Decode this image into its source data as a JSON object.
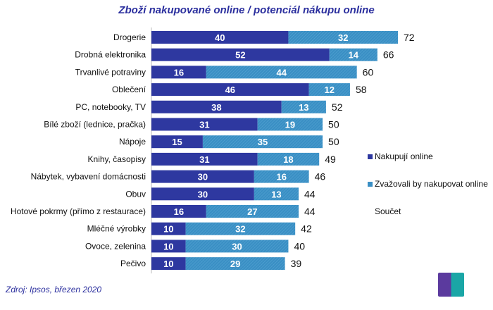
{
  "chart_data": {
    "type": "bar",
    "orientation": "horizontal",
    "stacked": true,
    "title": "Zboží nakupované online / potenciál nákupu online",
    "categories": [
      "Drogerie",
      "Drobná elektronika",
      "Trvanlivé potraviny",
      "Oblečení",
      "PC, notebooky, TV",
      "Bílé zboží (lednice, pračka)",
      "Nápoje",
      "Knihy, časopisy",
      "Nábytek, vybavení domácnosti",
      "Obuv",
      "Hotové pokrmy (přímo z restaurace)",
      "Mléčné výrobky",
      "Ovoce, zelenina",
      "Pečivo"
    ],
    "series": [
      {
        "name": "Nakupují online",
        "color": "#2e38a0",
        "values": [
          40,
          52,
          16,
          46,
          38,
          31,
          15,
          31,
          30,
          30,
          16,
          10,
          10,
          10
        ]
      },
      {
        "name": "Zvažovali by nakupovat online",
        "color": "#3a8fc4",
        "values": [
          32,
          14,
          44,
          12,
          13,
          19,
          35,
          18,
          16,
          13,
          27,
          32,
          30,
          29
        ]
      }
    ],
    "totals_label": "Součet",
    "totals": [
      72,
      66,
      60,
      58,
      52,
      50,
      50,
      49,
      46,
      44,
      44,
      42,
      40,
      39
    ],
    "xlim": [
      0,
      72
    ],
    "grid": false,
    "legend_position": "right"
  },
  "source": "Zdroj: Ipsos, březen 2020",
  "logo": "Ipsos"
}
